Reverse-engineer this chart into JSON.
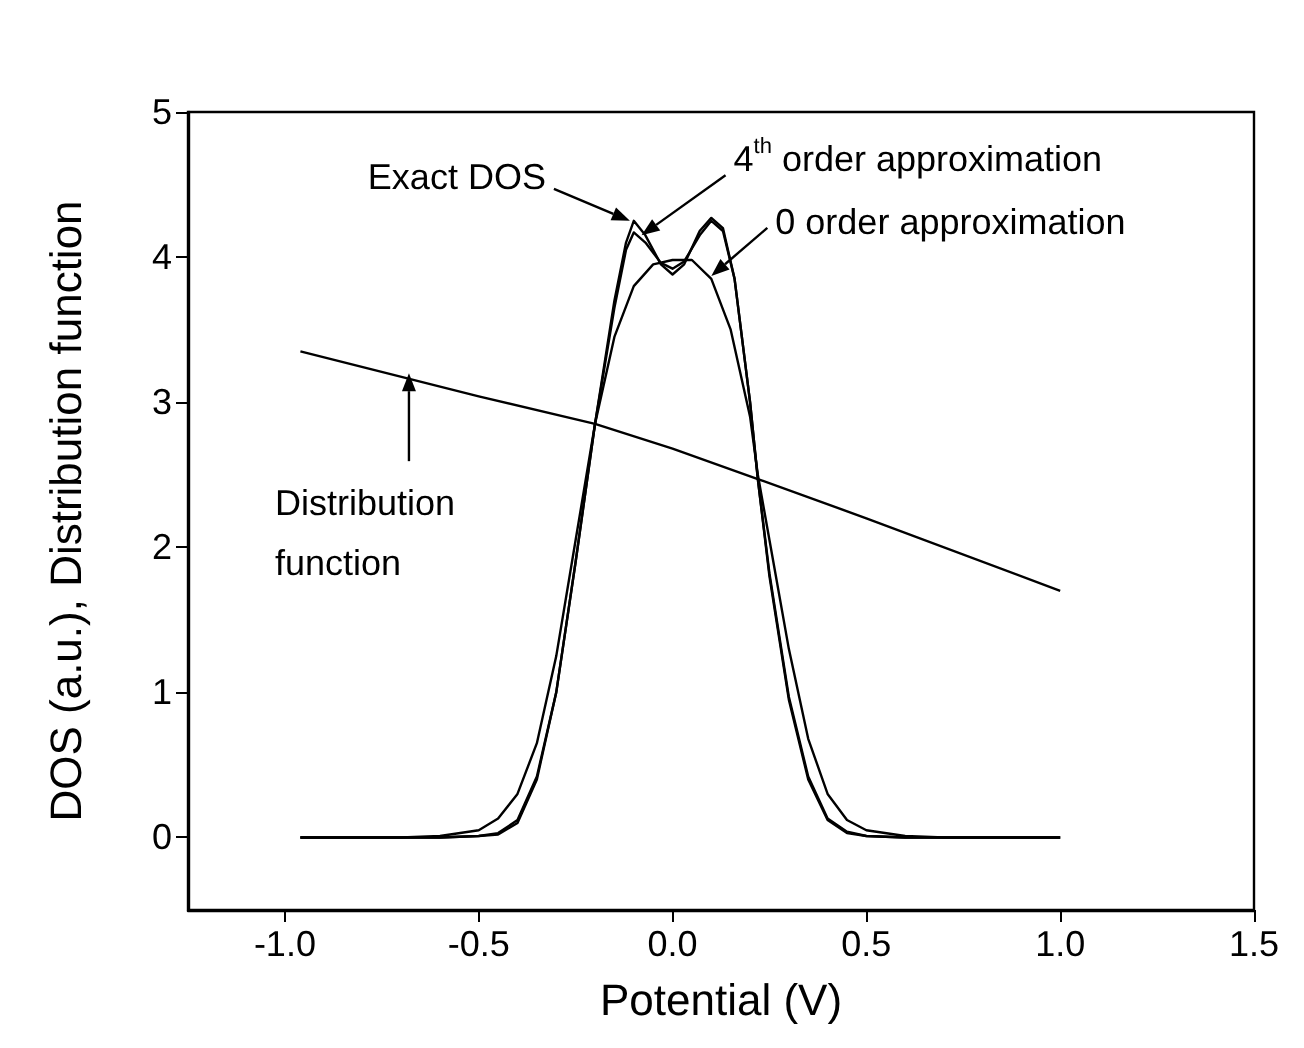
{
  "chart_data": {
    "type": "line",
    "xlabel": "Potential (V)",
    "ylabel": "DOS (a.u.), Distribution function",
    "xlim": [
      -1.25,
      1.5
    ],
    "xticks": [
      {
        "value": -1.0,
        "label": "-1.0"
      },
      {
        "value": -0.5,
        "label": "-0.5"
      },
      {
        "value": 0.0,
        "label": "0.0"
      },
      {
        "value": 0.5,
        "label": "0.5"
      },
      {
        "value": 1.0,
        "label": "1.0"
      },
      {
        "value": 1.5,
        "label": "1.5"
      }
    ],
    "ylim": [
      -0.5,
      5
    ],
    "yticks": [
      0,
      1,
      2,
      3,
      4,
      5
    ],
    "grid": false,
    "marker": "none",
    "line_style": "solid",
    "series": [
      {
        "color": "#000000",
        "x": [
          -0.96,
          -0.6,
          -0.5,
          -0.45,
          -0.4,
          -0.35,
          -0.3,
          -0.25,
          -0.2,
          -0.15,
          -0.12,
          -0.1,
          -0.07,
          -0.03,
          0,
          0.03,
          0.07,
          0.1,
          0.13,
          0.16,
          0.2,
          0.22,
          0.25,
          0.3,
          0.35,
          0.4,
          0.45,
          0.5,
          0.6,
          1.0
        ],
        "values": [
          0,
          0,
          0.01,
          0.02,
          0.1,
          0.4,
          1.0,
          1.9,
          2.85,
          3.7,
          4.1,
          4.25,
          4.15,
          3.95,
          3.88,
          3.95,
          4.18,
          4.27,
          4.2,
          3.85,
          3.0,
          2.47,
          1.8,
          0.95,
          0.4,
          0.12,
          0.03,
          0.01,
          0,
          0
        ]
      },
      {
        "color": "#000000",
        "x": [
          -0.96,
          -0.6,
          -0.5,
          -0.45,
          -0.4,
          -0.35,
          -0.3,
          -0.25,
          -0.2,
          -0.15,
          -0.12,
          -0.1,
          -0.07,
          -0.03,
          0,
          0.03,
          0.07,
          0.1,
          0.13,
          0.16,
          0.2,
          0.22,
          0.25,
          0.3,
          0.35,
          0.4,
          0.45,
          0.5,
          0.6,
          1.0
        ],
        "values": [
          0,
          0,
          0.01,
          0.03,
          0.12,
          0.42,
          1.0,
          1.9,
          2.85,
          3.65,
          4.05,
          4.17,
          4.1,
          3.96,
          3.92,
          3.97,
          4.15,
          4.25,
          4.18,
          3.85,
          3.0,
          2.47,
          1.82,
          0.97,
          0.42,
          0.13,
          0.04,
          0.01,
          0,
          0
        ]
      },
      {
        "color": "#000000",
        "x": [
          -0.96,
          -0.7,
          -0.6,
          -0.5,
          -0.45,
          -0.4,
          -0.35,
          -0.3,
          -0.25,
          -0.2,
          -0.15,
          -0.1,
          -0.05,
          0,
          0.05,
          0.1,
          0.15,
          0.2,
          0.22,
          0.25,
          0.3,
          0.35,
          0.4,
          0.45,
          0.5,
          0.6,
          0.7,
          1.0
        ],
        "values": [
          0,
          0,
          0.01,
          0.05,
          0.13,
          0.3,
          0.65,
          1.25,
          2.05,
          2.85,
          3.45,
          3.8,
          3.95,
          3.98,
          3.98,
          3.85,
          3.5,
          2.9,
          2.5,
          2.05,
          1.3,
          0.68,
          0.3,
          0.12,
          0.05,
          0.01,
          0,
          0
        ]
      },
      {
        "color": "#000000",
        "x": [
          -0.96,
          -0.5,
          -0.2,
          0,
          0.22,
          0.5,
          1.0
        ],
        "values": [
          3.35,
          3.04,
          2.85,
          2.68,
          2.47,
          2.2,
          1.7
        ]
      }
    ],
    "annotations": [
      {
        "text": "Exact DOS",
        "x": -0.11,
        "y": 4.25
      },
      {
        "text": "4$^{th}$ order approximation",
        "x": -0.08,
        "y": 4.15
      },
      {
        "text": "0 order approximation",
        "x": 0.1,
        "y": 3.87
      },
      {
        "text": "Distribution\nfunction",
        "x": -0.68,
        "y": 3.2
      }
    ]
  }
}
